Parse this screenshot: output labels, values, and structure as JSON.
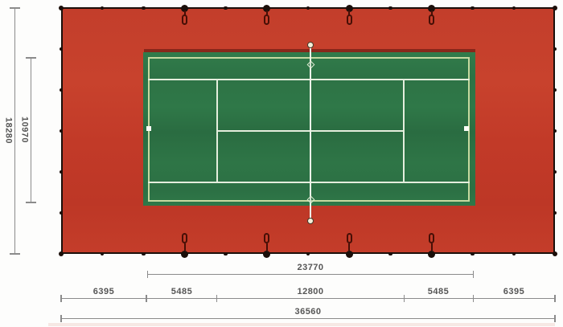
{
  "drawing": {
    "type": "tennis-court-dimension-plan",
    "dimension_labels": {
      "overall_length": "36560",
      "overall_width": "18280",
      "court_length": "23770",
      "court_width": "10970",
      "bottom_segments": [
        "6395",
        "5485",
        "12800",
        "5485",
        "6395"
      ]
    },
    "colors": {
      "surround_red": "#c23a28",
      "court_green": "#2e7546",
      "boundary_pale": "#c6d9a0",
      "line_white": "#e4eedd",
      "fence_black": "#1b0f0a",
      "hook_dark": "#470f06",
      "dim_gray": "#8b8b8b"
    }
  }
}
